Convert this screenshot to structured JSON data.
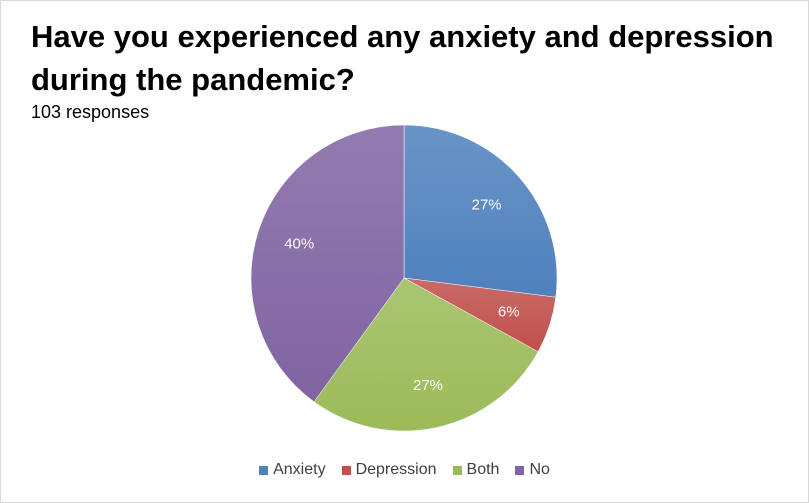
{
  "chart_data": {
    "type": "pie",
    "title": "Have you experienced any anxiety and depression during the pandemic?",
    "subtitle": "103 responses",
    "legend_position": "bottom",
    "slices": [
      {
        "label": "Anxiety",
        "value": 27,
        "display": "27%",
        "color": "#4f81bd"
      },
      {
        "label": "Depression",
        "value": 6,
        "display": "6%",
        "color": "#c0504d"
      },
      {
        "label": "Both",
        "value": 27,
        "display": "27%",
        "color": "#9bbb59"
      },
      {
        "label": "No",
        "value": 40,
        "display": "40%",
        "color": "#8064a2"
      }
    ]
  }
}
